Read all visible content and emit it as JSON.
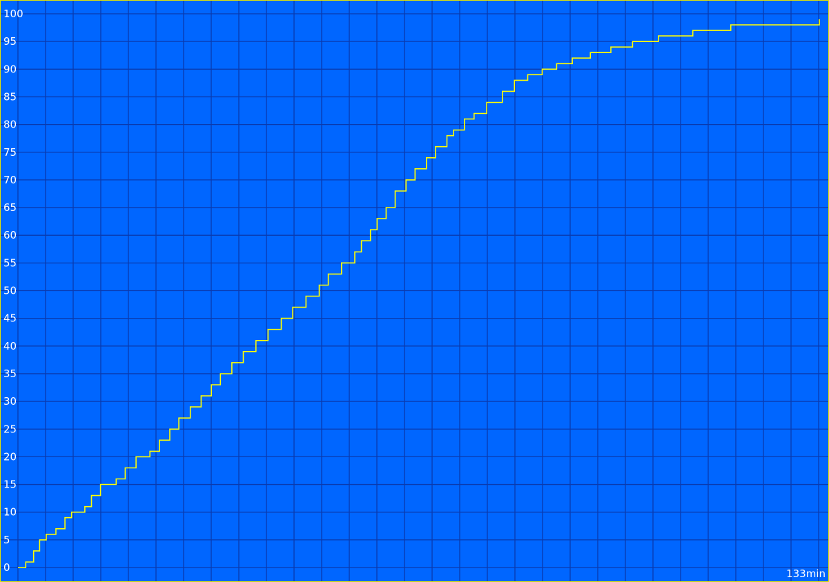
{
  "chart_data": {
    "type": "line",
    "title": "",
    "xlabel": "",
    "ylabel": "",
    "x_end_label": "133min",
    "x_unit": "min",
    "xlim": [
      0,
      133
    ],
    "ylim": [
      0,
      100
    ],
    "y_ticks": [
      "0",
      "5",
      "10",
      "15",
      "20",
      "25",
      "30",
      "35",
      "40",
      "45",
      "50",
      "55",
      "60",
      "65",
      "70",
      "75",
      "80",
      "85",
      "90",
      "95",
      "100"
    ],
    "grid": true,
    "legend": "none",
    "series": [
      {
        "color": "#FFFF00",
        "step": true,
        "x": [
          0,
          1.3,
          2.6,
          3.6,
          4.7,
          6.3,
          7.8,
          8.9,
          11.1,
          12.2,
          13.7,
          16.3,
          17.8,
          19.6,
          21.9,
          23.5,
          25.2,
          26.7,
          28.6,
          30.4,
          32.1,
          33.6,
          35.5,
          37.4,
          39.5,
          41.5,
          43.7,
          45.6,
          47.8,
          50.0,
          51.5,
          53.7,
          55.9,
          57.0,
          58.5,
          59.6,
          61.1,
          62.6,
          64.4,
          65.9,
          67.8,
          69.3,
          71.2,
          72.3,
          74.1,
          75.7,
          77.8,
          80.4,
          82.4,
          84.6,
          87.0,
          89.4,
          92.0,
          95.0,
          98.4,
          102.0,
          106.3,
          112.0,
          118.3,
          132.0,
          133.0
        ],
        "y": [
          0,
          1,
          3,
          5,
          6,
          7,
          9,
          10,
          11,
          13,
          15,
          16,
          18,
          20,
          21,
          23,
          25,
          27,
          29,
          31,
          33,
          35,
          37,
          39,
          41,
          43,
          45,
          47,
          49,
          51,
          53,
          55,
          57,
          59,
          61,
          63,
          65,
          68,
          70,
          72,
          74,
          76,
          78,
          79,
          81,
          82,
          84,
          86,
          88,
          89,
          90,
          91,
          92,
          93,
          94,
          95,
          96,
          97,
          98,
          98,
          99
        ]
      }
    ]
  }
}
